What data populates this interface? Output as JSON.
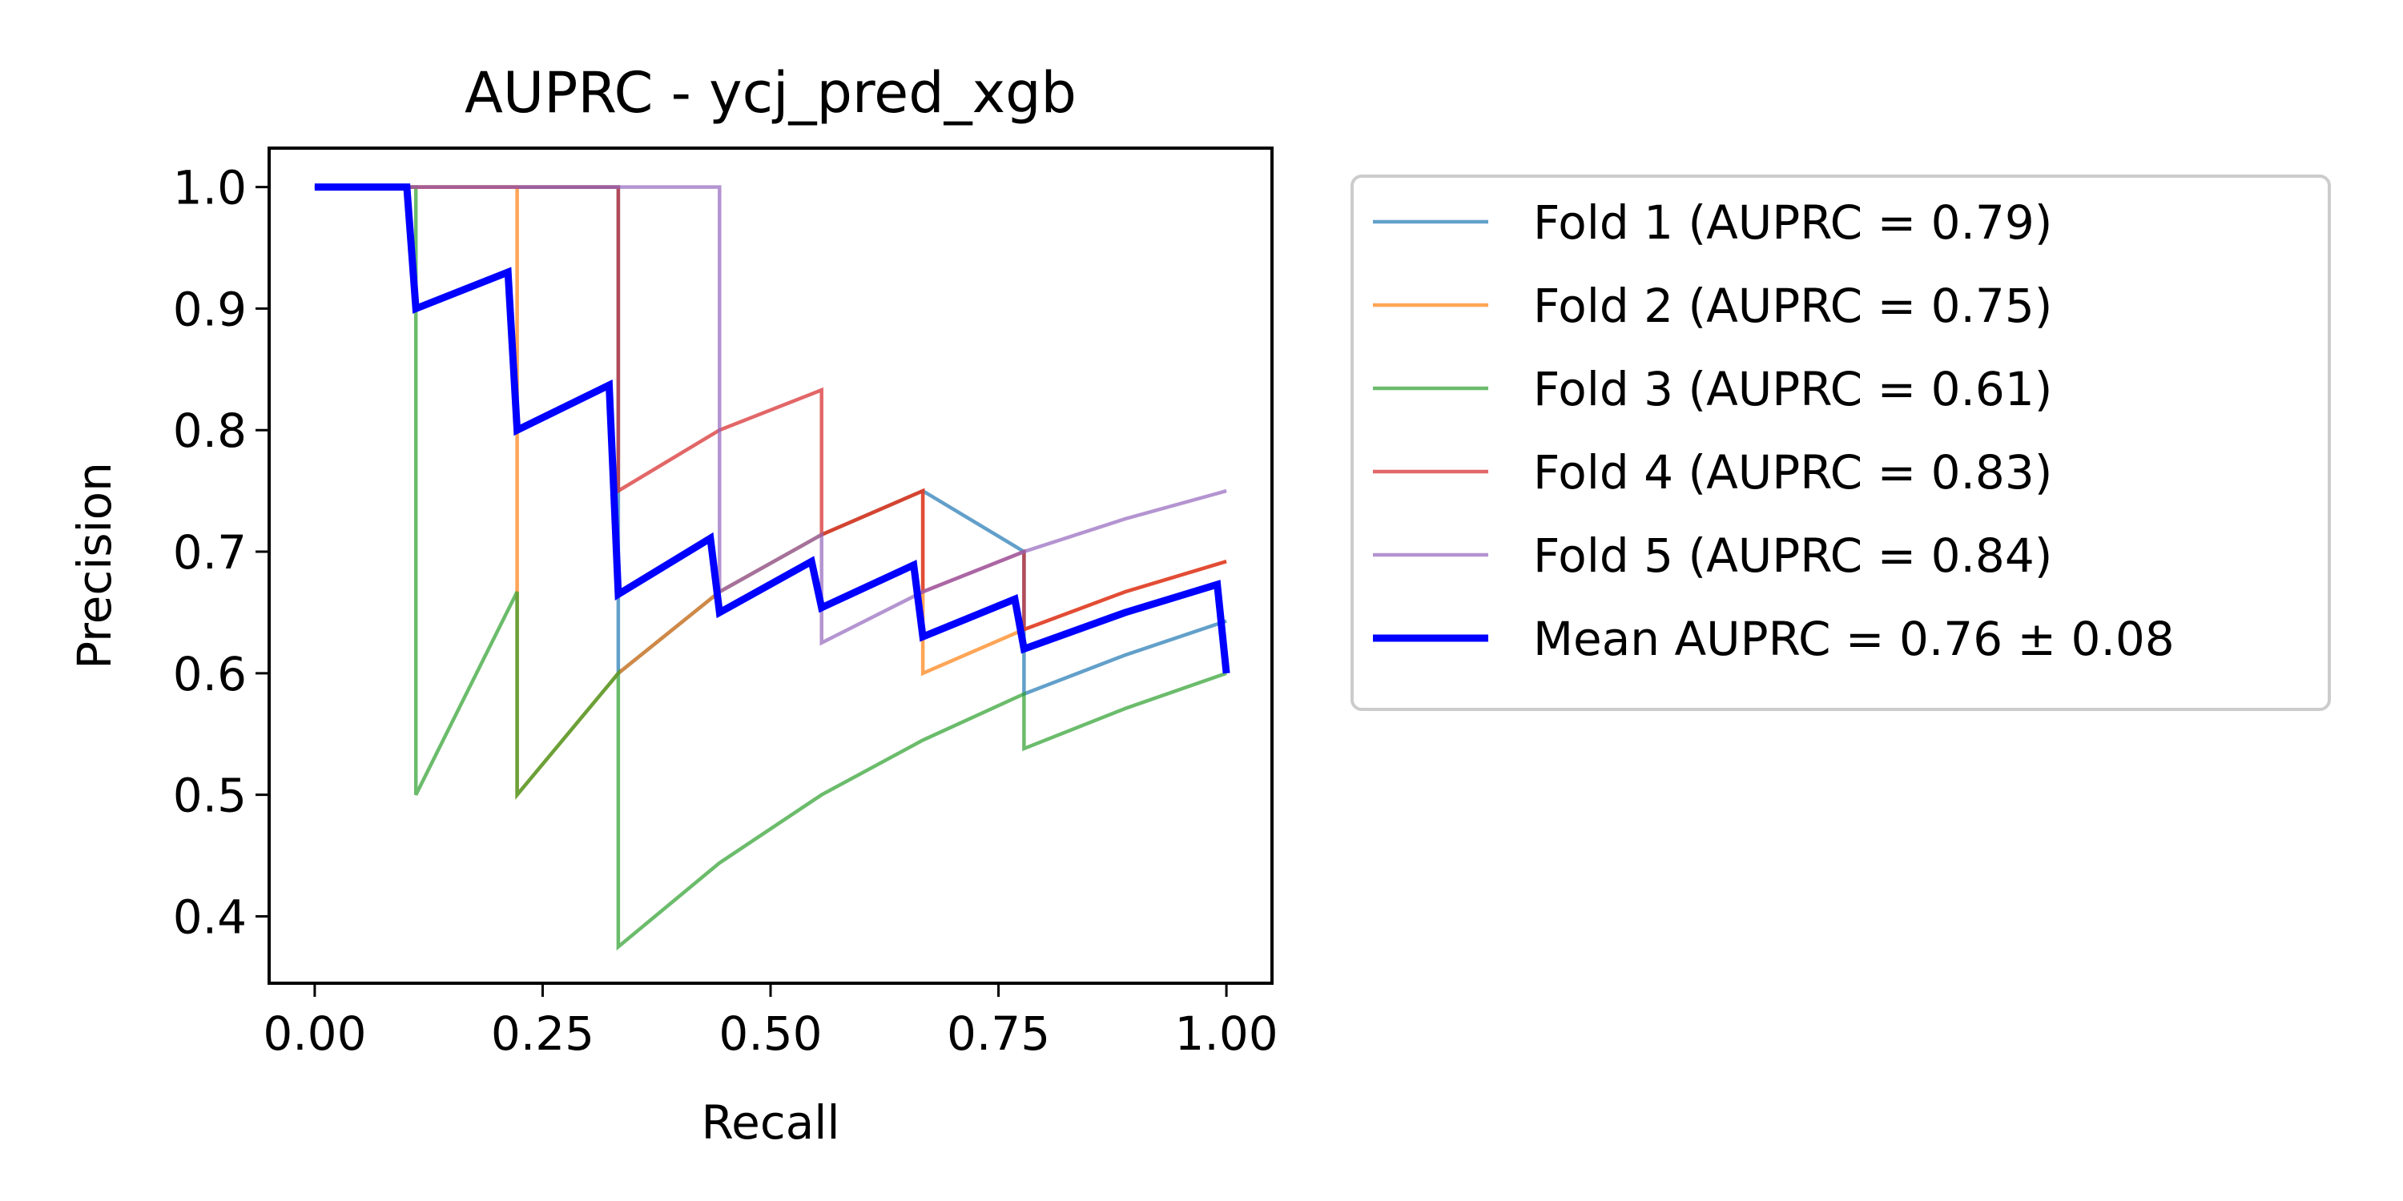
{
  "chart_data": {
    "type": "line",
    "title": "AUPRC - ycj_pred_xgb",
    "xlabel": "Recall",
    "ylabel": "Precision",
    "xlim": [
      -0.05,
      1.05
    ],
    "ylim": [
      0.345,
      1.032
    ],
    "xticks": [
      0.0,
      0.25,
      0.5,
      0.75,
      1.0
    ],
    "xtick_labels": [
      "0.00",
      "0.25",
      "0.50",
      "0.75",
      "1.00"
    ],
    "yticks": [
      0.4,
      0.5,
      0.6,
      0.7,
      0.8,
      0.9,
      1.0
    ],
    "ytick_labels": [
      "0.4",
      "0.5",
      "0.6",
      "0.7",
      "0.8",
      "0.9",
      "1.0"
    ],
    "grid": false,
    "legend_position": "outside right",
    "series": [
      {
        "name": "Fold 1 (AUPRC = 0.79)",
        "color": "#1f77b4",
        "x": [
          0.0,
          0.111,
          0.222,
          0.333,
          0.333,
          0.444,
          0.556,
          0.667,
          0.778,
          0.778,
          0.889,
          1.0
        ],
        "y": [
          1.0,
          1.0,
          1.0,
          1.0,
          0.6,
          0.667,
          0.714,
          0.75,
          0.7,
          0.583,
          0.615,
          0.643
        ]
      },
      {
        "name": "Fold 2 (AUPRC = 0.75)",
        "color": "#ff7f0e",
        "x": [
          0.0,
          0.111,
          0.222,
          0.222,
          0.333,
          0.444,
          0.556,
          0.667,
          0.667,
          0.778,
          0.889,
          1.0
        ],
        "y": [
          1.0,
          1.0,
          1.0,
          0.5,
          0.6,
          0.667,
          0.714,
          0.75,
          0.6,
          0.636,
          0.667,
          0.692
        ]
      },
      {
        "name": "Fold 3 (AUPRC = 0.61)",
        "color": "#2ca02c",
        "x": [
          0.0,
          0.111,
          0.111,
          0.222,
          0.222,
          0.333,
          0.333,
          0.444,
          0.556,
          0.667,
          0.778,
          0.778,
          0.889,
          1.0
        ],
        "y": [
          1.0,
          1.0,
          0.5,
          0.667,
          0.5,
          0.6,
          0.375,
          0.444,
          0.5,
          0.545,
          0.583,
          0.538,
          0.571,
          0.6
        ]
      },
      {
        "name": "Fold 4 (AUPRC = 0.83)",
        "color": "#d62728",
        "x": [
          0.0,
          0.111,
          0.222,
          0.333,
          0.333,
          0.444,
          0.556,
          0.556,
          0.667,
          0.667,
          0.778,
          0.778,
          0.889,
          1.0
        ],
        "y": [
          1.0,
          1.0,
          1.0,
          1.0,
          0.75,
          0.8,
          0.833,
          0.714,
          0.75,
          0.667,
          0.7,
          0.636,
          0.667,
          0.692
        ]
      },
      {
        "name": "Fold 5 (AUPRC = 0.84)",
        "color": "#9467bd",
        "x": [
          0.0,
          0.111,
          0.222,
          0.333,
          0.444,
          0.444,
          0.556,
          0.556,
          0.667,
          0.778,
          0.889,
          1.0
        ],
        "y": [
          1.0,
          1.0,
          1.0,
          1.0,
          1.0,
          0.667,
          0.714,
          0.625,
          0.667,
          0.7,
          0.727,
          0.75
        ]
      },
      {
        "name": "Mean AUPRC = 0.76 ± 0.08",
        "color": "#0000ff",
        "x": [
          0.0,
          0.101,
          0.111,
          0.212,
          0.222,
          0.323,
          0.333,
          0.434,
          0.444,
          0.545,
          0.556,
          0.657,
          0.667,
          0.768,
          0.778,
          0.889,
          0.99,
          1.0
        ],
        "y": [
          1.0,
          1.0,
          0.9,
          0.93,
          0.8,
          0.837,
          0.665,
          0.711,
          0.65,
          0.692,
          0.654,
          0.689,
          0.63,
          0.661,
          0.62,
          0.65,
          0.673,
          0.6
        ]
      }
    ]
  }
}
